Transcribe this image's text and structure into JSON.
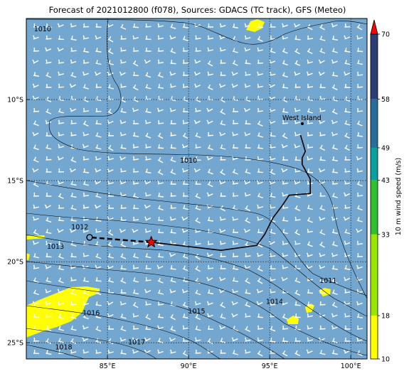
{
  "title": "Forecast of 2021012800 (f078), Sources: GDACS (TC track), GFS (Meteo)",
  "map": {
    "lon_range": [
      80.0,
      101.0
    ],
    "lat_range": [
      -26.0,
      -5.0
    ],
    "lon_ticks": [
      {
        "value": 85,
        "label": "85°E"
      },
      {
        "value": 90,
        "label": "90°E"
      },
      {
        "value": 95,
        "label": "95°E"
      },
      {
        "value": 100,
        "label": "100°E"
      }
    ],
    "lat_ticks": [
      {
        "value": -10,
        "label": "10°S"
      },
      {
        "value": -15,
        "label": "15°S"
      },
      {
        "value": -20,
        "label": "20°S"
      },
      {
        "value": -25,
        "label": "25°S"
      }
    ],
    "gridlines": true,
    "ocean_color": "#74a7d0",
    "land_color": "#ffff00",
    "wind_barbs": "white",
    "place_label": "West Island"
  },
  "track": {
    "observed": [
      [
        96.9,
        -12.2
      ],
      [
        97.2,
        -13.2
      ],
      [
        97.0,
        -13.6
      ],
      [
        97.0,
        -14.0
      ],
      [
        97.5,
        -14.9
      ],
      [
        97.5,
        -15.8
      ],
      [
        96.2,
        -15.9
      ],
      [
        95.8,
        -16.5
      ],
      [
        95.2,
        -17.3
      ],
      [
        94.7,
        -18.3
      ],
      [
        94.2,
        -19.0
      ],
      [
        92.0,
        -19.3
      ],
      [
        87.7,
        -18.8
      ]
    ],
    "forecast": [
      [
        87.7,
        -18.8
      ],
      [
        83.9,
        -18.5
      ]
    ],
    "current_position": [
      87.7,
      -18.8
    ]
  },
  "isobars": [
    {
      "label": "1010",
      "pos": [
        90.0,
        -13.9
      ]
    },
    {
      "label": "1010",
      "pos": [
        81.0,
        -5.8
      ]
    },
    {
      "label": "1011",
      "pos": [
        98.6,
        -21.3
      ]
    },
    {
      "label": "1012",
      "pos": [
        83.3,
        -18.0
      ]
    },
    {
      "label": "1013",
      "pos": [
        81.8,
        -19.2
      ]
    },
    {
      "label": "1014",
      "pos": [
        95.3,
        -22.6
      ]
    },
    {
      "label": "1015",
      "pos": [
        90.5,
        -23.2
      ]
    },
    {
      "label": "1016",
      "pos": [
        84.0,
        -23.3
      ]
    },
    {
      "label": "1017",
      "pos": [
        86.8,
        -25.1
      ]
    },
    {
      "label": "1018",
      "pos": [
        82.3,
        -25.4
      ]
    }
  ],
  "colorbar": {
    "label": "10 m wind speed (m/s)",
    "ticks": [
      "10",
      "18",
      "33",
      "43",
      "49",
      "58",
      "70"
    ],
    "colors": [
      "#ffff00",
      "#99e600",
      "#2fbf2f",
      "#0aa0a0",
      "#2a6b9e",
      "#2b3d74",
      "#1c1c4a"
    ],
    "extend_color": "#ff0000"
  }
}
